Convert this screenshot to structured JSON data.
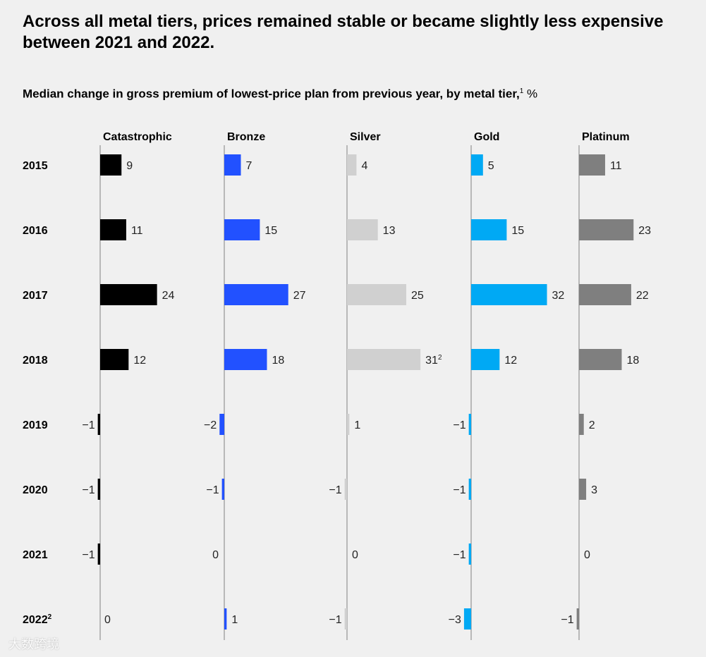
{
  "title": "Across all metal tiers, prices remained stable or became slightly less expensive between 2021 and 2022.",
  "subtitle": {
    "text": "Median change in gross premium of lowest-price plan from previous year, by metal tier,",
    "footnote": "1",
    "unit": "%"
  },
  "watermark": "大数跨境",
  "chart_data": {
    "type": "bar",
    "orientation": "horizontal",
    "title": "Median change in gross premium of lowest-price plan from previous year, by metal tier, %",
    "categories": [
      "2015",
      "2016",
      "2017",
      "2018",
      "2019",
      "2020",
      "2021",
      "2022"
    ],
    "category_notes": {
      "2022": "2"
    },
    "series": [
      {
        "name": "Catastrophic",
        "color": "#000000",
        "values": [
          9,
          11,
          24,
          12,
          -1,
          -1,
          -1,
          0
        ]
      },
      {
        "name": "Bronze",
        "color": "#2251ff",
        "values": [
          7,
          15,
          27,
          18,
          -2,
          -1,
          0,
          1
        ]
      },
      {
        "name": "Silver",
        "color": "#d0d0d0",
        "values": [
          4,
          13,
          25,
          31,
          1,
          -1,
          0,
          -1
        ],
        "value_notes": {
          "2018": "2"
        }
      },
      {
        "name": "Gold",
        "color": "#00a9f4",
        "values": [
          5,
          15,
          32,
          12,
          -1,
          -1,
          -1,
          -3
        ]
      },
      {
        "name": "Platinum",
        "color": "#7f7f7f",
        "values": [
          11,
          23,
          22,
          18,
          2,
          3,
          0,
          -1
        ]
      }
    ],
    "value_unit": "%",
    "grid": false,
    "legend": "none"
  }
}
